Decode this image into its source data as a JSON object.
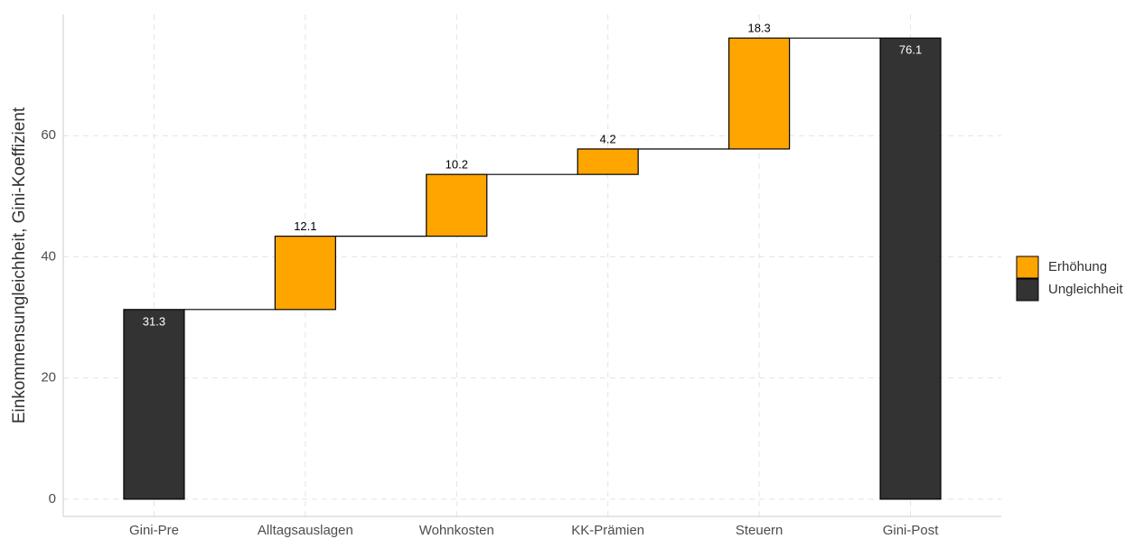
{
  "chart_data": {
    "type": "waterfall",
    "categories": [
      "Gini-Pre",
      "Alltagsauslagen",
      "Wohnkosten",
      "KK-Prämien",
      "Steuern",
      "Gini-Post"
    ],
    "series": [
      {
        "name": "Erhöhung",
        "color": "#FFA500",
        "values": [
          null,
          12.1,
          10.2,
          4.2,
          18.3,
          null
        ]
      },
      {
        "name": "Ungleichheit",
        "color": "#333333",
        "values": [
          31.3,
          null,
          null,
          null,
          null,
          76.1
        ]
      }
    ],
    "y_label": "Einkommensungleichheit, Gini-Koeffizient",
    "ylim": [
      -2.85,
      80
    ],
    "yticks": [
      0,
      20,
      40,
      60
    ],
    "grid": true,
    "legend": "right"
  }
}
